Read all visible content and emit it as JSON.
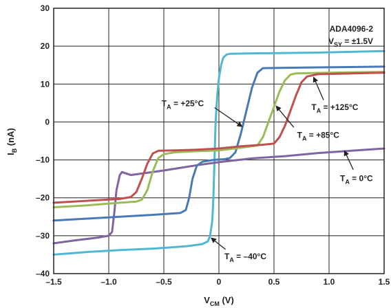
{
  "chart_data": {
    "type": "line",
    "xlabel": {
      "main": "V",
      "sub": "CM",
      "rest": " (V)"
    },
    "ylabel": {
      "main": "I",
      "sub": "B",
      "rest": " (nA)"
    },
    "xlim": [
      -1.5,
      1.5
    ],
    "ylim": [
      -40,
      30
    ],
    "xticks": [
      -1.5,
      -1.0,
      -0.5,
      0,
      0.5,
      1.0,
      1.5
    ],
    "xtick_labels": [
      "–1.5",
      "–1.0",
      "–0.5",
      "0",
      "0.5",
      "1.0",
      "1.5"
    ],
    "yticks": [
      -40,
      -30,
      -20,
      -10,
      0,
      10,
      20,
      30
    ],
    "ytick_labels": [
      "–40",
      "–30",
      "–20",
      "–10",
      "0",
      "10",
      "20",
      "30"
    ],
    "grid": true,
    "legend_box": {
      "line1": "ADA4096-2",
      "line2_main": "V",
      "line2_sub": "SY",
      "line2_rest": " = ±1.5V"
    },
    "series": [
      {
        "name": "T_A = –40°C",
        "color": "#4fb7d2",
        "points": [
          [
            -1.5,
            -35
          ],
          [
            -1.2,
            -34.3
          ],
          [
            -0.9,
            -33.8
          ],
          [
            -0.6,
            -33.4
          ],
          [
            -0.3,
            -32.8
          ],
          [
            -0.15,
            -32.2
          ],
          [
            -0.1,
            -31.5
          ],
          [
            -0.08,
            -30
          ],
          [
            -0.06,
            -26
          ],
          [
            -0.05,
            -20
          ],
          [
            -0.04,
            -10
          ],
          [
            -0.03,
            0
          ],
          [
            -0.015,
            7
          ],
          [
            0.0,
            11.5
          ],
          [
            0.02,
            15
          ],
          [
            0.04,
            17
          ],
          [
            0.07,
            17.8
          ],
          [
            0.1,
            18
          ],
          [
            0.3,
            18.1
          ],
          [
            0.6,
            18.2
          ],
          [
            0.9,
            18.3
          ],
          [
            1.2,
            18.5
          ],
          [
            1.5,
            18.7
          ]
        ]
      },
      {
        "name": "T_A = 0°C",
        "color": "#8064a2",
        "points": [
          [
            -1.5,
            -32
          ],
          [
            -1.3,
            -31.2
          ],
          [
            -1.1,
            -30.5
          ],
          [
            -1.0,
            -30
          ],
          [
            -0.97,
            -29
          ],
          [
            -0.95,
            -24
          ],
          [
            -0.93,
            -18
          ],
          [
            -0.9,
            -14
          ],
          [
            -0.88,
            -13.2
          ],
          [
            -0.85,
            -13.5
          ],
          [
            -0.8,
            -14
          ],
          [
            -0.5,
            -12.8
          ],
          [
            -0.2,
            -11.4
          ],
          [
            0.0,
            -10.6
          ],
          [
            0.3,
            -9.6
          ],
          [
            0.6,
            -9
          ],
          [
            0.9,
            -8.2
          ],
          [
            1.2,
            -7.6
          ],
          [
            1.5,
            -7
          ]
        ]
      },
      {
        "name": "T_A = +25°C",
        "color": "#4a79b8",
        "points": [
          [
            -1.5,
            -26
          ],
          [
            -1.2,
            -25.5
          ],
          [
            -0.9,
            -25
          ],
          [
            -0.6,
            -24.5
          ],
          [
            -0.35,
            -24
          ],
          [
            -0.3,
            -23.2
          ],
          [
            -0.27,
            -20
          ],
          [
            -0.24,
            -15
          ],
          [
            -0.2,
            -11.5
          ],
          [
            -0.15,
            -10.5
          ],
          [
            -0.05,
            -10
          ],
          [
            0.05,
            -9.8
          ],
          [
            0.1,
            -9.5
          ],
          [
            0.15,
            -8
          ],
          [
            0.2,
            -3
          ],
          [
            0.25,
            3
          ],
          [
            0.3,
            9
          ],
          [
            0.35,
            13
          ],
          [
            0.4,
            14.2
          ],
          [
            0.6,
            14.3
          ],
          [
            0.9,
            14.4
          ],
          [
            1.2,
            14.5
          ],
          [
            1.5,
            14.6
          ]
        ]
      },
      {
        "name": "T_A = +85°C",
        "color": "#9bbb59",
        "points": [
          [
            -1.5,
            -22.5
          ],
          [
            -1.2,
            -22
          ],
          [
            -0.9,
            -21.3
          ],
          [
            -0.75,
            -21
          ],
          [
            -0.7,
            -20.5
          ],
          [
            -0.65,
            -18
          ],
          [
            -0.6,
            -13
          ],
          [
            -0.55,
            -9.5
          ],
          [
            -0.5,
            -8.5
          ],
          [
            -0.4,
            -8
          ],
          [
            -0.2,
            -7.7
          ],
          [
            0.0,
            -7.5
          ],
          [
            0.2,
            -6.8
          ],
          [
            0.35,
            -6.2
          ],
          [
            0.4,
            -4
          ],
          [
            0.45,
            0
          ],
          [
            0.5,
            4
          ],
          [
            0.55,
            8
          ],
          [
            0.6,
            11
          ],
          [
            0.65,
            12.5
          ],
          [
            0.7,
            12.8
          ],
          [
            1.0,
            13
          ],
          [
            1.5,
            13.2
          ]
        ]
      },
      {
        "name": "T_A = +125°C",
        "color": "#c0504d",
        "points": [
          [
            -1.5,
            -21.3
          ],
          [
            -1.2,
            -20.8
          ],
          [
            -0.9,
            -20.3
          ],
          [
            -0.8,
            -19.8
          ],
          [
            -0.75,
            -18.5
          ],
          [
            -0.7,
            -15
          ],
          [
            -0.65,
            -11
          ],
          [
            -0.6,
            -8.3
          ],
          [
            -0.55,
            -7.6
          ],
          [
            -0.4,
            -7.5
          ],
          [
            -0.2,
            -7.3
          ],
          [
            0.0,
            -7
          ],
          [
            0.2,
            -6.4
          ],
          [
            0.4,
            -6
          ],
          [
            0.5,
            -5.7
          ],
          [
            0.55,
            -4
          ],
          [
            0.6,
            -1
          ],
          [
            0.65,
            3
          ],
          [
            0.7,
            7
          ],
          [
            0.75,
            10.5
          ],
          [
            0.8,
            12
          ],
          [
            0.9,
            12.6
          ],
          [
            1.2,
            12.8
          ],
          [
            1.5,
            13
          ]
        ]
      }
    ],
    "annotations": [
      {
        "main": "T",
        "sub": "A",
        "rest": " = +25°C",
        "label_x": -0.52,
        "label_y": 4.2,
        "arrow_from": [
          -0.04,
          3.8
        ],
        "arrow_to": [
          0.21,
          -1.2
        ]
      },
      {
        "main": "T",
        "sub": "A",
        "rest": " = +125°C",
        "label_x": 0.84,
        "label_y": 3.2,
        "arrow_from": [
          0.95,
          5.8
        ],
        "arrow_to": [
          0.86,
          11.8
        ]
      },
      {
        "main": "T",
        "sub": "A",
        "rest": " = +85°C",
        "label_x": 0.71,
        "label_y": -4.2,
        "arrow_from": [
          0.68,
          -1.4
        ],
        "arrow_to": [
          0.52,
          4.2
        ]
      },
      {
        "main": "T",
        "sub": "A",
        "rest": " = 0°C",
        "label_x": 1.1,
        "label_y": -15.6,
        "arrow_from": [
          1.22,
          -12.6
        ],
        "arrow_to": [
          1.14,
          -7.6
        ]
      },
      {
        "main": "T",
        "sub": "A",
        "rest": " = –40°C",
        "label_x": 0.05,
        "label_y": -36.2,
        "arrow_from": [
          0.06,
          -33.6
        ],
        "arrow_to": [
          -0.07,
          -30.6
        ]
      }
    ]
  }
}
